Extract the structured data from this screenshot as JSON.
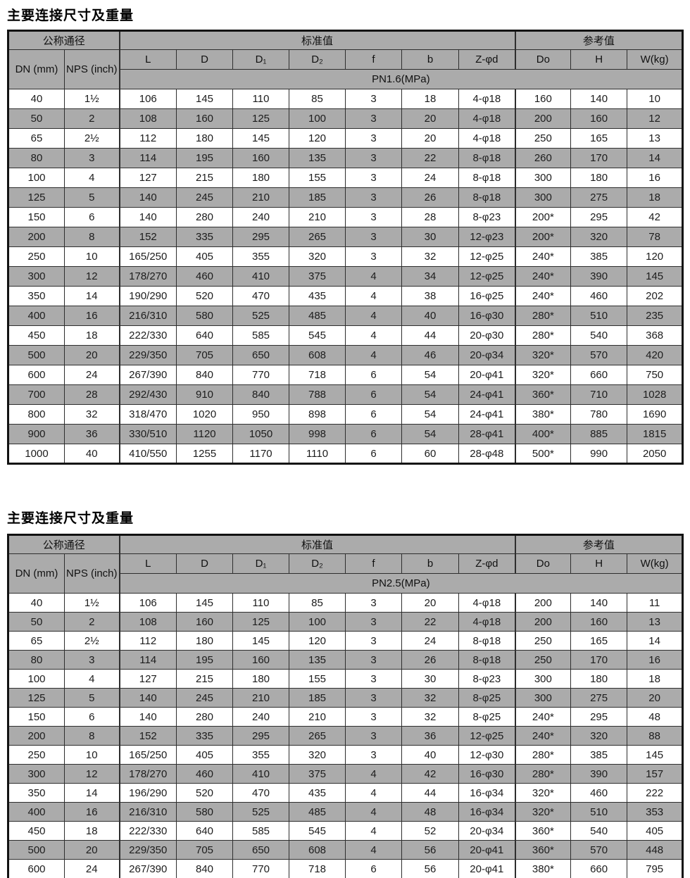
{
  "colors": {
    "header_bg": "#ababab",
    "row_alt_bg": "#ababab",
    "row_bg": "#ffffff",
    "border_outer": "#121212",
    "border_inner": "#2e2e2e",
    "text": "#1c1c1c"
  },
  "tables": [
    {
      "title": "主要连接尺寸及重量",
      "group_headers": [
        "公称通径",
        "标准值",
        "参考值"
      ],
      "column_headers": [
        "DN\n(mm)",
        "NPS\n(inch)",
        "L",
        "D",
        "D₁",
        "D₂",
        "f",
        "b",
        "Z-φd",
        "Do",
        "H",
        "W(kg)"
      ],
      "pressure_label": "PN1.6(MPa)",
      "cutoff": false,
      "rows": [
        [
          "40",
          "1½",
          "106",
          "145",
          "110",
          "85",
          "3",
          "18",
          "4-φ18",
          "160",
          "140",
          "10"
        ],
        [
          "50",
          "2",
          "108",
          "160",
          "125",
          "100",
          "3",
          "20",
          "4-φ18",
          "200",
          "160",
          "12"
        ],
        [
          "65",
          "2½",
          "112",
          "180",
          "145",
          "120",
          "3",
          "20",
          "4-φ18",
          "250",
          "165",
          "13"
        ],
        [
          "80",
          "3",
          "114",
          "195",
          "160",
          "135",
          "3",
          "22",
          "8-φ18",
          "260",
          "170",
          "14"
        ],
        [
          "100",
          "4",
          "127",
          "215",
          "180",
          "155",
          "3",
          "24",
          "8-φ18",
          "300",
          "180",
          "16"
        ],
        [
          "125",
          "5",
          "140",
          "245",
          "210",
          "185",
          "3",
          "26",
          "8-φ18",
          "300",
          "275",
          "18"
        ],
        [
          "150",
          "6",
          "140",
          "280",
          "240",
          "210",
          "3",
          "28",
          "8-φ23",
          "200*",
          "295",
          "42"
        ],
        [
          "200",
          "8",
          "152",
          "335",
          "295",
          "265",
          "3",
          "30",
          "12-φ23",
          "200*",
          "320",
          "78"
        ],
        [
          "250",
          "10",
          "165/250",
          "405",
          "355",
          "320",
          "3",
          "32",
          "12-φ25",
          "240*",
          "385",
          "120"
        ],
        [
          "300",
          "12",
          "178/270",
          "460",
          "410",
          "375",
          "4",
          "34",
          "12-φ25",
          "240*",
          "390",
          "145"
        ],
        [
          "350",
          "14",
          "190/290",
          "520",
          "470",
          "435",
          "4",
          "38",
          "16-φ25",
          "240*",
          "460",
          "202"
        ],
        [
          "400",
          "16",
          "216/310",
          "580",
          "525",
          "485",
          "4",
          "40",
          "16-φ30",
          "280*",
          "510",
          "235"
        ],
        [
          "450",
          "18",
          "222/330",
          "640",
          "585",
          "545",
          "4",
          "44",
          "20-φ30",
          "280*",
          "540",
          "368"
        ],
        [
          "500",
          "20",
          "229/350",
          "705",
          "650",
          "608",
          "4",
          "46",
          "20-φ34",
          "320*",
          "570",
          "420"
        ],
        [
          "600",
          "24",
          "267/390",
          "840",
          "770",
          "718",
          "6",
          "54",
          "20-φ41",
          "320*",
          "660",
          "750"
        ],
        [
          "700",
          "28",
          "292/430",
          "910",
          "840",
          "788",
          "6",
          "54",
          "24-φ41",
          "360*",
          "710",
          "1028"
        ],
        [
          "800",
          "32",
          "318/470",
          "1020",
          "950",
          "898",
          "6",
          "54",
          "24-φ41",
          "380*",
          "780",
          "1690"
        ],
        [
          "900",
          "36",
          "330/510",
          "1120",
          "1050",
          "998",
          "6",
          "54",
          "28-φ41",
          "400*",
          "885",
          "1815"
        ],
        [
          "1000",
          "40",
          "410/550",
          "1255",
          "1170",
          "1110",
          "6",
          "60",
          "28-φ48",
          "500*",
          "990",
          "2050"
        ]
      ]
    },
    {
      "title": "主要连接尺寸及重量",
      "group_headers": [
        "公称通径",
        "标准值",
        "参考值"
      ],
      "column_headers": [
        "DN\n(mm)",
        "NPS\n(inch)",
        "L",
        "D",
        "D₁",
        "D₂",
        "f",
        "b",
        "Z-φd",
        "Do",
        "H",
        "W(kg)"
      ],
      "pressure_label": "PN2.5(MPa)",
      "cutoff": true,
      "rows": [
        [
          "40",
          "1½",
          "106",
          "145",
          "110",
          "85",
          "3",
          "20",
          "4-φ18",
          "200",
          "140",
          "11"
        ],
        [
          "50",
          "2",
          "108",
          "160",
          "125",
          "100",
          "3",
          "22",
          "4-φ18",
          "200",
          "160",
          "13"
        ],
        [
          "65",
          "2½",
          "112",
          "180",
          "145",
          "120",
          "3",
          "24",
          "8-φ18",
          "250",
          "165",
          "14"
        ],
        [
          "80",
          "3",
          "114",
          "195",
          "160",
          "135",
          "3",
          "26",
          "8-φ18",
          "250",
          "170",
          "16"
        ],
        [
          "100",
          "4",
          "127",
          "215",
          "180",
          "155",
          "3",
          "30",
          "8-φ23",
          "300",
          "180",
          "18"
        ],
        [
          "125",
          "5",
          "140",
          "245",
          "210",
          "185",
          "3",
          "32",
          "8-φ25",
          "300",
          "275",
          "20"
        ],
        [
          "150",
          "6",
          "140",
          "280",
          "240",
          "210",
          "3",
          "32",
          "8-φ25",
          "240*",
          "295",
          "48"
        ],
        [
          "200",
          "8",
          "152",
          "335",
          "295",
          "265",
          "3",
          "36",
          "12-φ25",
          "240*",
          "320",
          "88"
        ],
        [
          "250",
          "10",
          "165/250",
          "405",
          "355",
          "320",
          "3",
          "40",
          "12-φ30",
          "280*",
          "385",
          "145"
        ],
        [
          "300",
          "12",
          "178/270",
          "460",
          "410",
          "375",
          "4",
          "42",
          "16-φ30",
          "280*",
          "390",
          "157"
        ],
        [
          "350",
          "14",
          "196/290",
          "520",
          "470",
          "435",
          "4",
          "44",
          "16-φ34",
          "320*",
          "460",
          "222"
        ],
        [
          "400",
          "16",
          "216/310",
          "580",
          "525",
          "485",
          "4",
          "48",
          "16-φ34",
          "320*",
          "510",
          "353"
        ],
        [
          "450",
          "18",
          "222/330",
          "640",
          "585",
          "545",
          "4",
          "52",
          "20-φ34",
          "360*",
          "540",
          "405"
        ],
        [
          "500",
          "20",
          "229/350",
          "705",
          "650",
          "608",
          "4",
          "56",
          "20-φ41",
          "360*",
          "570",
          "448"
        ],
        [
          "600",
          "24",
          "267/390",
          "840",
          "770",
          "718",
          "6",
          "56",
          "20-φ41",
          "380*",
          "660",
          "795"
        ]
      ]
    }
  ]
}
